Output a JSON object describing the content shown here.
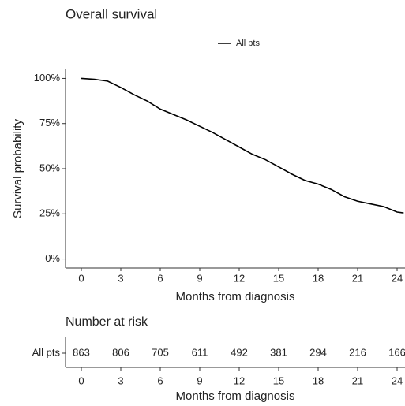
{
  "chart_data": [
    {
      "type": "line",
      "title": "Overall survival",
      "x_label": "Months from diagnosis",
      "y_label": "Survival probability",
      "x": [
        0,
        1,
        2,
        3,
        4,
        5,
        6,
        7,
        8,
        9,
        10,
        11,
        12,
        13,
        14,
        15,
        16,
        17,
        18,
        19,
        20,
        21,
        22,
        23,
        24,
        24.5
      ],
      "series": [
        {
          "name": "All pts",
          "color": "#000000",
          "values": [
            100,
            99.5,
            98.5,
            95,
            91,
            87.5,
            83,
            80,
            77,
            73.5,
            70,
            66,
            62,
            58,
            55,
            51,
            47,
            43.5,
            41.5,
            38.5,
            34.5,
            32,
            30.5,
            29,
            26,
            25.5
          ]
        }
      ],
      "xlim": [
        -1.2,
        24.6
      ],
      "xticks": [
        0,
        3,
        6,
        9,
        12,
        15,
        18,
        21,
        24
      ],
      "ylim": [
        -5,
        105
      ],
      "yticks": [
        {
          "value": 0,
          "label": "0%"
        },
        {
          "value": 25,
          "label": "25%"
        },
        {
          "value": 50,
          "label": "50%"
        },
        {
          "value": 75,
          "label": "75%"
        },
        {
          "value": 100,
          "label": "100%"
        }
      ],
      "grid": false,
      "legend": "top"
    },
    {
      "type": "risk_table",
      "title": "Number at risk",
      "x_label": "Months from diagnosis",
      "x": [
        0,
        3,
        6,
        9,
        12,
        15,
        18,
        21,
        24
      ],
      "series": [
        {
          "name": "All pts",
          "values": [
            863,
            806,
            705,
            611,
            492,
            381,
            294,
            216,
            166
          ]
        }
      ],
      "xlim": [
        -1.2,
        24.6
      ],
      "xticks": [
        0,
        3,
        6,
        9,
        12,
        15,
        18,
        21,
        24
      ]
    }
  ]
}
